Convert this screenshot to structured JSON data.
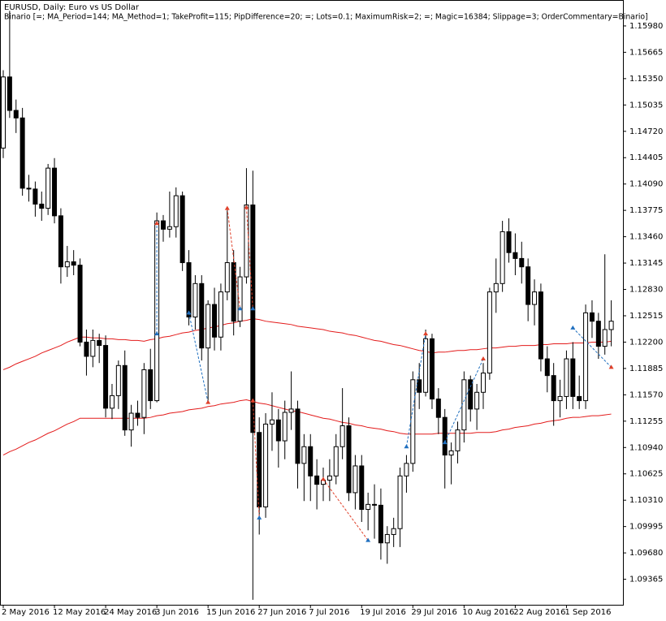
{
  "chart_data": {
    "type": "candlestick",
    "title": "EURUSD, Daily:  Euro vs US Dollar",
    "subtitle": "Binario [=; MA_Period=144; MA_Method=1; TakeProfit=115; PipDifference=20; =; Lots=0.1; MaximumRisk=2; =; Magic=16384; Slippage=3; OrderCommentary=Binario]",
    "up_color": "#ffffff",
    "down_color": "#000000",
    "wick_color": "#000000",
    "buy_color": "#1f6fbf",
    "sell_color": "#e0402a",
    "ylim": [
      1.0906,
      1.1629
    ],
    "yticks": [
      {
        "value": 1.1598,
        "label": "1.15980"
      },
      1.15665,
      {
        "value": 1.1535,
        "label": "1.15350"
      },
      1.15035,
      {
        "value": 1.1472,
        "label": "1.14720"
      },
      1.14405,
      {
        "value": 1.1409,
        "label": "1.14090"
      },
      1.13775,
      {
        "value": 1.1346,
        "label": "1.13460"
      },
      1.13145,
      {
        "value": 1.1283,
        "label": "1.12830"
      },
      1.12515,
      {
        "value": 1.122,
        "label": "1.12200"
      },
      1.11885,
      {
        "value": 1.1157,
        "label": "1.11570"
      },
      1.11255,
      {
        "value": 1.1094,
        "label": "1.10940"
      },
      1.10625,
      {
        "value": 1.1031,
        "label": "1.10310"
      },
      1.09995,
      {
        "value": 1.0968,
        "label": "1.09680"
      },
      1.09365
    ],
    "categories": [
      "2 May 2016",
      null,
      null,
      null,
      null,
      null,
      null,
      null,
      "12 May 2016",
      null,
      null,
      null,
      null,
      null,
      null,
      null,
      "24 May 2016",
      null,
      null,
      null,
      null,
      null,
      null,
      null,
      "3 Jun 2016",
      null,
      null,
      null,
      null,
      null,
      null,
      null,
      "15 Jun 2016",
      null,
      null,
      null,
      null,
      null,
      null,
      null,
      "27 Jun 2016",
      null,
      null,
      null,
      null,
      null,
      null,
      null,
      "7 Jul 2016",
      null,
      null,
      null,
      null,
      null,
      null,
      null,
      "19 Jul 2016",
      null,
      null,
      null,
      null,
      null,
      null,
      null,
      "29 Jul 2016",
      null,
      null,
      null,
      null,
      null,
      null,
      null,
      "10 Aug 2016",
      null,
      null,
      null,
      null,
      null,
      null,
      null,
      "22 Aug 2016",
      null,
      null,
      null,
      null,
      null,
      null,
      null,
      "1 Sep 2016",
      null,
      null,
      null,
      null,
      null,
      null,
      null
    ],
    "open": [
      1.1452,
      1.1537,
      1.1497,
      1.1488,
      1.1404,
      1.1403,
      1.1385,
      1.138,
      1.1428,
      1.1371,
      1.131,
      1.1316,
      1.1312,
      1.122,
      1.1203,
      1.1222,
      1.1216,
      1.1141,
      1.1156,
      1.1192,
      1.1115,
      1.1135,
      1.113,
      1.1187,
      1.115,
      1.1365,
      1.1355,
      1.1358,
      1.1395,
      1.1315,
      1.125,
      1.129,
      1.1213,
      1.1265,
      1.1226,
      1.128,
      1.1315,
      1.1245,
      1.1298,
      1.1384,
      1.1112,
      1.1023,
      1.1122,
      1.1127,
      1.1102,
      1.1136,
      1.114,
      1.1075,
      1.1095,
      1.106,
      1.105,
      1.1055,
      1.106,
      1.1095,
      1.112,
      1.104,
      1.1072,
      1.102,
      1.1026,
      1.1025,
      1.098,
      1.099,
      1.0997,
      1.106,
      1.1075,
      1.1175,
      1.116,
      1.1224,
      1.1152,
      1.113,
      1.1085,
      1.109,
      1.1115,
      1.1175,
      1.114,
      1.116,
      1.1183,
      1.128,
      1.129,
      1.1352,
      1.1327,
      1.132,
      1.131,
      1.1265,
      1.128,
      1.12,
      1.118,
      1.115,
      1.1155,
      1.12,
      1.1155,
      1.115,
      1.1255,
      1.1245,
      1.1215,
      1.1235
    ],
    "high": [
      1.1545,
      1.1616,
      1.151,
      1.15,
      1.142,
      1.1412,
      1.14,
      1.1433,
      1.144,
      1.138,
      1.1335,
      1.133,
      1.132,
      1.1235,
      1.1235,
      1.123,
      1.1228,
      1.117,
      1.1198,
      1.121,
      1.1145,
      1.115,
      1.1195,
      1.1212,
      1.1375,
      1.1372,
      1.14,
      1.1405,
      1.14,
      1.133,
      1.13,
      1.13,
      1.127,
      1.1285,
      1.129,
      1.1378,
      1.133,
      1.131,
      1.1428,
      1.1425,
      1.113,
      1.1135,
      1.116,
      1.114,
      1.115,
      1.1185,
      1.115,
      1.111,
      1.111,
      1.108,
      1.107,
      1.108,
      1.111,
      1.1165,
      1.113,
      1.1085,
      1.1085,
      1.104,
      1.105,
      1.1045,
      1.1,
      1.101,
      1.107,
      1.1085,
      1.1185,
      1.1195,
      1.1235,
      1.123,
      1.1165,
      1.114,
      1.11,
      1.1125,
      1.1185,
      1.118,
      1.117,
      1.1195,
      1.1285,
      1.132,
      1.1365,
      1.1368,
      1.135,
      1.134,
      1.132,
      1.1295,
      1.129,
      1.1215,
      1.1195,
      1.1175,
      1.121,
      1.122,
      1.118,
      1.1265,
      1.127,
      1.1255,
      1.1325,
      1.127
    ],
    "low": [
      1.144,
      1.1488,
      1.147,
      1.1395,
      1.1388,
      1.137,
      1.1365,
      1.1372,
      1.1362,
      1.129,
      1.1298,
      1.13,
      1.1215,
      1.118,
      1.119,
      1.1195,
      1.113,
      1.1128,
      1.114,
      1.1108,
      1.1095,
      1.112,
      1.111,
      1.114,
      1.1148,
      1.134,
      1.1345,
      1.1345,
      1.1305,
      1.124,
      1.1235,
      1.1198,
      1.115,
      1.121,
      1.121,
      1.127,
      1.1228,
      1.1238,
      1.129,
      1.0912,
      1.099,
      1.101,
      1.109,
      1.107,
      1.108,
      1.1115,
      1.1045,
      1.103,
      1.103,
      1.102,
      1.103,
      1.103,
      1.105,
      1.108,
      1.103,
      1.102,
      1.1005,
      1.0995,
      1.0985,
      1.096,
      1.0955,
      1.0975,
      1.0975,
      1.104,
      1.1065,
      1.114,
      1.1155,
      1.114,
      1.111,
      1.1045,
      1.105,
      1.1075,
      1.11,
      1.1125,
      1.1115,
      1.114,
      1.1175,
      1.1255,
      1.128,
      1.1315,
      1.13,
      1.129,
      1.1245,
      1.124,
      1.1185,
      1.116,
      1.112,
      1.113,
      1.114,
      1.114,
      1.114,
      1.114,
      1.1225,
      1.12,
      1.1205,
      1.1215
    ],
    "close": [
      1.1537,
      1.1497,
      1.1488,
      1.1404,
      1.1403,
      1.1385,
      1.138,
      1.1428,
      1.1371,
      1.131,
      1.1316,
      1.1312,
      1.122,
      1.1203,
      1.1222,
      1.1216,
      1.1141,
      1.1156,
      1.1192,
      1.1115,
      1.1135,
      1.113,
      1.1187,
      1.115,
      1.1365,
      1.1355,
      1.1358,
      1.1395,
      1.1315,
      1.125,
      1.129,
      1.1213,
      1.1265,
      1.1226,
      1.128,
      1.1315,
      1.1245,
      1.1298,
      1.1384,
      1.1112,
      1.1023,
      1.1122,
      1.1127,
      1.1102,
      1.1136,
      1.114,
      1.1075,
      1.1095,
      1.106,
      1.105,
      1.1055,
      1.106,
      1.1095,
      1.112,
      1.104,
      1.1072,
      1.102,
      1.1026,
      1.1025,
      1.098,
      1.099,
      1.0997,
      1.106,
      1.1075,
      1.1175,
      1.116,
      1.1224,
      1.1152,
      1.113,
      1.1085,
      1.109,
      1.1115,
      1.1175,
      1.114,
      1.116,
      1.1183,
      1.128,
      1.129,
      1.1352,
      1.1327,
      1.132,
      1.131,
      1.1265,
      1.128,
      1.12,
      1.118,
      1.115,
      1.1155,
      1.12,
      1.1155,
      1.115,
      1.1255,
      1.1245,
      1.1215,
      1.1235,
      1.1245
    ],
    "lines": [
      {
        "color": "#e31b1b",
        "values": [
          1.1187,
          1.119,
          1.1194,
          1.1197,
          1.12,
          1.1203,
          1.1207,
          1.121,
          1.1213,
          1.1216,
          1.122,
          1.1223,
          1.1226,
          1.1226,
          1.1225,
          1.1225,
          1.1224,
          1.1224,
          1.1223,
          1.1223,
          1.1222,
          1.1222,
          1.1221,
          1.1223,
          1.1224,
          1.1226,
          1.1227,
          1.1229,
          1.1231,
          1.1232,
          1.1234,
          1.1235,
          1.1237,
          1.1238,
          1.124,
          1.1242,
          1.1243,
          1.1245,
          1.1246,
          1.1248,
          1.1247,
          1.1245,
          1.1244,
          1.1243,
          1.1242,
          1.1241,
          1.1239,
          1.1238,
          1.1237,
          1.1236,
          1.1235,
          1.1233,
          1.1232,
          1.1231,
          1.1229,
          1.1228,
          1.1226,
          1.1224,
          1.1222,
          1.1221,
          1.1219,
          1.1217,
          1.1216,
          1.1214,
          1.1212,
          1.121,
          1.1209,
          1.1207,
          1.1208,
          1.1208,
          1.1209,
          1.121,
          1.121,
          1.1211,
          1.1211,
          1.1212,
          1.1213,
          1.1213,
          1.1214,
          1.1215,
          1.1215,
          1.1216,
          1.1216,
          1.1216,
          1.1217,
          1.1217,
          1.1218,
          1.1218,
          1.1218,
          1.1219,
          1.1219,
          1.1219,
          1.122,
          1.122,
          1.122,
          1.1221
        ]
      },
      {
        "color": "#e31b1b",
        "values": [
          1.1085,
          1.1089,
          1.1092,
          1.1096,
          1.11,
          1.1103,
          1.1107,
          1.1111,
          1.1114,
          1.1118,
          1.1122,
          1.1125,
          1.1129,
          1.1129,
          1.1129,
          1.1129,
          1.1129,
          1.1129,
          1.1129,
          1.1129,
          1.1129,
          1.1129,
          1.1129,
          1.113,
          1.1132,
          1.1133,
          1.1135,
          1.1136,
          1.1137,
          1.1139,
          1.114,
          1.1141,
          1.1143,
          1.1144,
          1.1146,
          1.1147,
          1.1148,
          1.115,
          1.1151,
          1.1149,
          1.1147,
          1.1146,
          1.1144,
          1.1142,
          1.114,
          1.1138,
          1.1137,
          1.1135,
          1.1133,
          1.1131,
          1.1129,
          1.1128,
          1.1126,
          1.1124,
          1.1123,
          1.1121,
          1.112,
          1.1118,
          1.1117,
          1.1116,
          1.1114,
          1.1113,
          1.1111,
          1.111,
          1.111,
          1.111,
          1.111,
          1.111,
          1.1111,
          1.1111,
          1.1111,
          1.1111,
          1.1111,
          1.1111,
          1.1112,
          1.1112,
          1.1112,
          1.1113,
          1.1115,
          1.1116,
          1.1118,
          1.1119,
          1.112,
          1.1122,
          1.1123,
          1.1125,
          1.1126,
          1.1127,
          1.1129,
          1.113,
          1.113,
          1.1131,
          1.1132,
          1.1132,
          1.1133,
          1.1134
        ]
      }
    ],
    "trades": [
      {
        "side": "buy",
        "open_bar": 24,
        "open_price": 1.123,
        "close_bar": 24,
        "close_price": 1.1362
      },
      {
        "side": "buy",
        "open_bar": 29,
        "open_price": 1.1255,
        "close_bar": 32,
        "close_price": 1.1148
      },
      {
        "side": "sell",
        "open_bar": 35,
        "open_price": 1.138,
        "close_bar": 37,
        "close_price": 1.126
      },
      {
        "side": "sell",
        "open_bar": 38,
        "open_price": 1.1381,
        "close_bar": 39,
        "close_price": 1.126
      },
      {
        "side": "sell",
        "open_bar": 39,
        "open_price": 1.115,
        "close_bar": 40,
        "close_price": 1.101
      },
      {
        "side": "sell",
        "open_bar": 50,
        "open_price": 1.1056,
        "close_bar": 57,
        "close_price": 1.0983
      },
      {
        "side": "buy",
        "open_bar": 63,
        "open_price": 1.1095,
        "close_bar": 66,
        "close_price": 1.123
      },
      {
        "side": "buy",
        "open_bar": 69,
        "open_price": 1.11,
        "close_bar": 75,
        "close_price": 1.12
      },
      {
        "side": "buy",
        "open_bar": 89,
        "open_price": 1.1237,
        "close_bar": 95,
        "close_price": 1.119
      }
    ]
  }
}
